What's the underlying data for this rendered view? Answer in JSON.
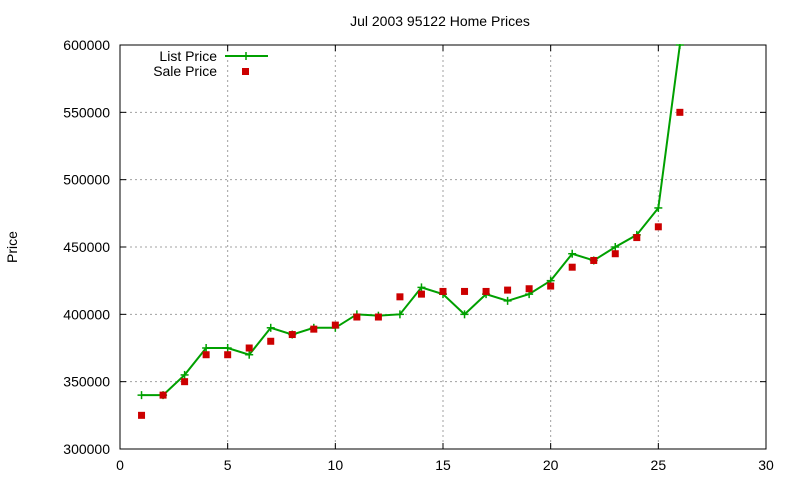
{
  "chart_data": {
    "type": "line",
    "title": "Jul 2003 95122 Home Prices",
    "xlabel": "",
    "ylabel": "Price",
    "xlim": [
      0,
      30
    ],
    "ylim": [
      300000,
      600000
    ],
    "xticks": [
      "0",
      "5",
      "10",
      "15",
      "20",
      "25",
      "30"
    ],
    "yticks": [
      "300000",
      "350000",
      "400000",
      "450000",
      "500000",
      "550000",
      "600000"
    ],
    "grid": true,
    "legend_position": "top-left",
    "series": [
      {
        "name": "List Price",
        "kind": "line+cross",
        "color": "#00a000",
        "x": [
          1,
          2,
          3,
          4,
          5,
          6,
          7,
          8,
          9,
          10,
          11,
          12,
          13,
          14,
          15,
          16,
          17,
          18,
          19,
          20,
          21,
          22,
          23,
          24,
          25,
          26
        ],
        "y": [
          340000,
          340000,
          355000,
          375000,
          375000,
          370000,
          390000,
          385000,
          390000,
          390000,
          400000,
          399000,
          400000,
          420000,
          415000,
          400000,
          415000,
          410000,
          415000,
          425000,
          445000,
          440000,
          450000,
          459000,
          479000,
          600000
        ]
      },
      {
        "name": "Sale Price",
        "kind": "points",
        "color": "#cc0000",
        "x": [
          1,
          2,
          3,
          4,
          5,
          6,
          7,
          8,
          9,
          10,
          11,
          12,
          13,
          14,
          15,
          16,
          17,
          18,
          19,
          20,
          21,
          22,
          23,
          24,
          25,
          26
        ],
        "y": [
          325000,
          340000,
          350000,
          370000,
          370000,
          375000,
          380000,
          385000,
          389000,
          392000,
          398000,
          398000,
          413000,
          415000,
          417000,
          417000,
          417000,
          418000,
          419000,
          421000,
          435000,
          440000,
          445000,
          457000,
          465000,
          550000
        ]
      }
    ]
  }
}
